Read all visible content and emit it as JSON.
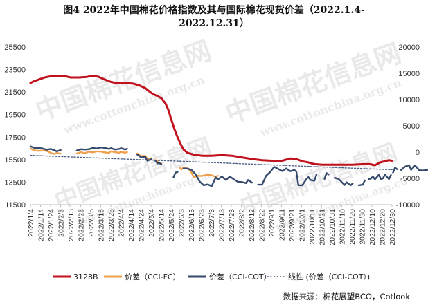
{
  "title_line1": "图4 2022年中国棉花价格指数及其与国际棉花现货价差（2022.1.4-",
  "title_line2": "2022.12.31）",
  "source": "数据来源：棉花展望BCO，Cotlook",
  "watermark": {
    "brand": "中国棉花信息网",
    "url": "www.cottonchina.org.cn"
  },
  "chart_data": {
    "type": "line",
    "left_axis": {
      "min": 11500,
      "max": 25500,
      "ticks": [
        11500,
        13500,
        15500,
        17500,
        19500,
        21500,
        23500,
        25500
      ]
    },
    "right_axis": {
      "min": -10000,
      "max": 20000,
      "ticks": [
        -10000,
        -5000,
        0,
        5000,
        10000,
        15000,
        20000
      ]
    },
    "x_labels": [
      "2022/1/4",
      "2022/1/14",
      "2022/1/24",
      "2022/2/3",
      "2022/2/13",
      "2022/2/23",
      "2022/3/5",
      "2022/3/15",
      "2022/3/25",
      "2022/4/4",
      "2022/4/14",
      "2022/4/24",
      "2022/5/4",
      "2022/5/14",
      "2022/5/24",
      "2022/6/3",
      "2022/6/13",
      "2022/6/23",
      "2022/7/3",
      "2022/7/13",
      "2022/7/23",
      "2022/8/2",
      "2022/8/12",
      "2022/8/22",
      "2022/9/1",
      "2022/9/11",
      "2022/9/21",
      "2022/10/1",
      "2022/10/11",
      "2022/10/21",
      "2022/10/31",
      "2022/11/10",
      "2022/11/20",
      "2022/11/30",
      "2022/12/10",
      "2022/12/20",
      "2022/12/30"
    ],
    "legend": [
      "3128B",
      "价差（CCI-FC）",
      "价差（CCI-COT）",
      "线性 (价差（CCI-COT）)"
    ],
    "series": [
      {
        "name": "3128B",
        "axis": "left",
        "color": "#c0121c",
        "points": [
          [
            0,
            22300
          ],
          [
            3,
            22450
          ],
          [
            8,
            22600
          ],
          [
            14,
            22800
          ],
          [
            20,
            22900
          ],
          [
            26,
            22950
          ],
          [
            32,
            22950
          ],
          [
            40,
            22800
          ],
          [
            48,
            22800
          ],
          [
            56,
            22850
          ],
          [
            62,
            22950
          ],
          [
            68,
            22850
          ],
          [
            74,
            22600
          ],
          [
            80,
            22400
          ],
          [
            86,
            22300
          ],
          [
            90,
            22300
          ],
          [
            96,
            22300
          ],
          [
            102,
            22250
          ],
          [
            108,
            22100
          ],
          [
            114,
            21850
          ],
          [
            118,
            21550
          ],
          [
            122,
            21300
          ],
          [
            126,
            21150
          ],
          [
            130,
            20950
          ],
          [
            134,
            20500
          ],
          [
            137,
            19900
          ],
          [
            140,
            19000
          ],
          [
            143,
            18200
          ],
          [
            146,
            17500
          ],
          [
            149,
            16900
          ],
          [
            152,
            16400
          ],
          [
            156,
            16100
          ],
          [
            162,
            15950
          ],
          [
            170,
            15850
          ],
          [
            180,
            15850
          ],
          [
            190,
            15900
          ],
          [
            200,
            15850
          ],
          [
            210,
            15700
          ],
          [
            220,
            15550
          ],
          [
            230,
            15450
          ],
          [
            240,
            15400
          ],
          [
            250,
            15400
          ],
          [
            258,
            15600
          ],
          [
            264,
            15550
          ],
          [
            270,
            15350
          ],
          [
            276,
            15250
          ],
          [
            282,
            15100
          ],
          [
            290,
            15050
          ],
          [
            300,
            15050
          ],
          [
            310,
            15050
          ],
          [
            320,
            15050
          ],
          [
            330,
            15100
          ],
          [
            337,
            15100
          ],
          [
            342,
            15000
          ],
          [
            347,
            15250
          ],
          [
            352,
            15350
          ],
          [
            356,
            15450
          ],
          [
            359,
            15400
          ]
        ]
      },
      {
        "name": "价差（CCI-FC）",
        "axis": "right",
        "color": "#f0a04c",
        "segments": [
          [
            [
              0,
              700
            ],
            [
              4,
              300
            ],
            [
              8,
              250
            ],
            [
              14,
              300
            ],
            [
              18,
              100
            ],
            [
              20,
              -150
            ],
            [
              24,
              -350
            ],
            [
              26,
              -150
            ],
            [
              30,
              -300
            ]
          ],
          [
            [
              46,
              -250
            ],
            [
              50,
              0
            ],
            [
              54,
              -200
            ],
            [
              58,
              100
            ],
            [
              62,
              -50
            ],
            [
              66,
              150
            ],
            [
              70,
              100
            ],
            [
              74,
              -50
            ],
            [
              78,
              -150
            ],
            [
              80,
              150
            ],
            [
              84,
              0
            ],
            [
              88,
              -100
            ],
            [
              90,
              50
            ],
            [
              94,
              -100
            ],
            [
              96,
              0
            ]
          ],
          [
            [
              106,
              -250
            ],
            [
              110,
              -750
            ],
            [
              114,
              -700
            ],
            [
              116,
              -1350
            ],
            [
              120,
              -1150
            ]
          ],
          [
            [
              124,
              -1500
            ],
            [
              126,
              -1750
            ],
            [
              128,
              -2050
            ],
            [
              130,
              -2200
            ]
          ],
          [
            [
              148,
              -2950
            ],
            [
              150,
              -3300
            ],
            [
              152,
              -2900
            ],
            [
              154,
              -3100
            ],
            [
              156,
              -3050
            ],
            [
              160,
              -3900
            ],
            [
              162,
              -4800
            ],
            [
              166,
              -4500
            ],
            [
              170,
              -4550
            ],
            [
              174,
              -4400
            ],
            [
              178,
              -4300
            ],
            [
              182,
              -4550
            ],
            [
              184,
              -4700
            ],
            [
              186,
              -4500
            ]
          ]
        ]
      },
      {
        "name": "价差（CCI-COT）",
        "axis": "right",
        "color": "#34496b",
        "segments": [
          [
            [
              0,
              1100
            ],
            [
              4,
              800
            ],
            [
              8,
              800
            ],
            [
              12,
              700
            ],
            [
              16,
              450
            ],
            [
              20,
              600
            ],
            [
              24,
              350
            ],
            [
              26,
              150
            ],
            [
              30,
              400
            ]
          ],
          [
            [
              46,
              300
            ],
            [
              50,
              550
            ],
            [
              54,
              500
            ],
            [
              58,
              550
            ],
            [
              62,
              800
            ],
            [
              66,
              700
            ],
            [
              70,
              900
            ],
            [
              74,
              800
            ],
            [
              78,
              600
            ],
            [
              80,
              750
            ],
            [
              84,
              500
            ],
            [
              88,
              600
            ],
            [
              90,
              750
            ],
            [
              94,
              500
            ],
            [
              96,
              650
            ]
          ],
          [
            [
              106,
              -450
            ],
            [
              110,
              -1000
            ],
            [
              114,
              -900
            ],
            [
              116,
              -1650
            ],
            [
              120,
              -1350
            ]
          ],
          [
            [
              124,
              -1650
            ],
            [
              126,
              -2150
            ],
            [
              128,
              -2100
            ],
            [
              130,
              -2300
            ]
          ],
          [
            [
              142,
              -4800
            ],
            [
              144,
              -3900
            ],
            [
              146,
              -3800
            ]
          ],
          [
            [
              152,
              -3100
            ],
            [
              156,
              -3150
            ],
            [
              160,
              -3400
            ],
            [
              164,
              -4250
            ],
            [
              168,
              -5600
            ],
            [
              172,
              -6300
            ],
            [
              176,
              -6150
            ],
            [
              180,
              -6450
            ],
            [
              184,
              -4800
            ],
            [
              186,
              -5200
            ],
            [
              190,
              -4650
            ],
            [
              194,
              -5300
            ],
            [
              198,
              -4650
            ],
            [
              202,
              -5200
            ],
            [
              206,
              -5650
            ],
            [
              210,
              -5700
            ],
            [
              214,
              -5900
            ],
            [
              216,
              -5300
            ],
            [
              220,
              -5800
            ]
          ],
          [
            [
              226,
              -6200
            ],
            [
              230,
              -6200
            ],
            [
              234,
              -4500
            ],
            [
              238,
              -3800
            ],
            [
              242,
              -2800
            ],
            [
              246,
              -3200
            ],
            [
              250,
              -3600
            ],
            [
              254,
              -3100
            ],
            [
              258,
              -3650
            ],
            [
              262,
              -3400
            ],
            [
              264,
              -3700
            ],
            [
              266,
              -6300
            ],
            [
              270,
              -6300
            ],
            [
              274,
              -5150
            ],
            [
              276,
              -4750
            ],
            [
              278,
              -5300
            ],
            [
              282,
              -5450
            ],
            [
              284,
              -4300
            ]
          ],
          [
            [
              292,
              -5100
            ],
            [
              294,
              -4000
            ],
            [
              296,
              -4250
            ]
          ],
          [
            [
              302,
              -4900
            ],
            [
              306,
              -5100
            ],
            [
              310,
              -5900
            ],
            [
              312,
              -6250
            ],
            [
              314,
              -5750
            ],
            [
              318,
              -6300
            ],
            [
              320,
              -5950
            ]
          ],
          [
            [
              326,
              -6300
            ],
            [
              330,
              -6200
            ],
            [
              332,
              -5400
            ]
          ],
          [
            [
              336,
              -5100
            ],
            [
              338,
              -5050
            ],
            [
              340,
              -4650
            ],
            [
              342,
              -5200
            ],
            [
              346,
              -4300
            ],
            [
              348,
              -5150
            ],
            [
              350,
              -5000
            ],
            [
              352,
              -4300
            ],
            [
              356,
              -5150
            ],
            [
              358,
              -4350
            ]
          ],
          [
            [
              360,
              -3900
            ],
            [
              362,
              -2950
            ],
            [
              364,
              -3250
            ]
          ],
          [
            [
              368,
              -3400
            ],
            [
              372,
              -2750
            ],
            [
              376,
              -2500
            ],
            [
              378,
              -3350
            ],
            [
              382,
              -2550
            ],
            [
              386,
              -3450
            ],
            [
              390,
              -3500
            ],
            [
              394,
              -3400
            ]
          ],
          [
            [
              400,
              -3800
            ],
            [
              402,
              -3400
            ],
            [
              406,
              -4350
            ],
            [
              408,
              -4150
            ],
            [
              410,
              -4550
            ],
            [
              412,
              -4000
            ],
            [
              414,
              -4600
            ],
            [
              418,
              -3700
            ],
            [
              422,
              -3700
            ],
            [
              424,
              -3350
            ],
            [
              428,
              -3850
            ]
          ],
          [
            [
              434,
              -3450
            ],
            [
              436,
              -3900
            ],
            [
              440,
              -3500
            ],
            [
              444,
              -3300
            ],
            [
              446,
              -3200
            ],
            [
              448,
              -3700
            ],
            [
              450,
              -4300
            ],
            [
              452,
              -3600
            ],
            [
              454,
              -3250
            ],
            [
              456,
              -3500
            ],
            [
              460,
              -3900
            ]
          ]
        ]
      },
      {
        "name": "线性 (价差（CCI-COT）)",
        "axis": "right",
        "color": "#4a5f84",
        "dash": true,
        "points": [
          [
            0,
            -600
          ],
          [
            359,
            -3350
          ]
        ]
      }
    ]
  }
}
